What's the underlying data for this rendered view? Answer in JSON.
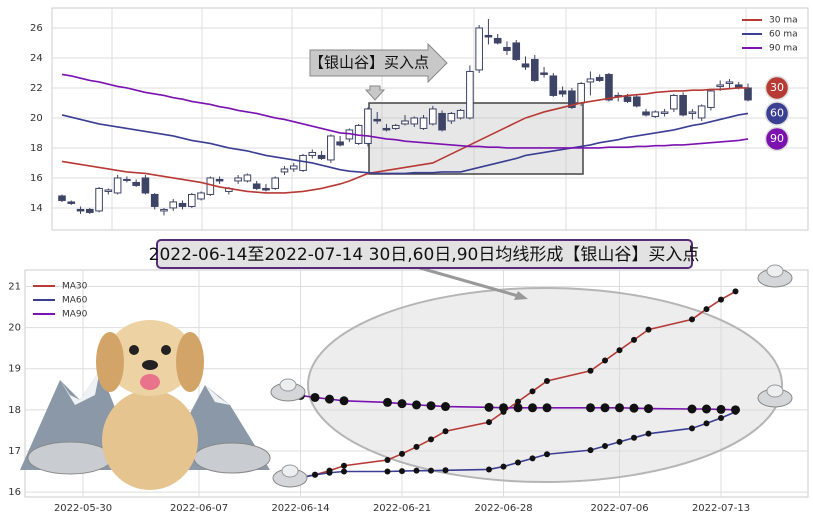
{
  "top_chart": {
    "type": "candlestick",
    "open": [
      14.8,
      14.4,
      13.9,
      13.9,
      13.8,
      15.1,
      15.0,
      15.9,
      15.7,
      16.0,
      14.9,
      13.8,
      14.0,
      14.3,
      14.1,
      14.6,
      14.9,
      15.9,
      15.1,
      15.8,
      15.8,
      15.6,
      15.3,
      15.3,
      16.4,
      16.6,
      16.5,
      17.5,
      17.5,
      17.2,
      18.4,
      18.6,
      18.3,
      18.3,
      19.9,
      19.3,
      19.3,
      19.6,
      19.6,
      19.3,
      19.6,
      20.3,
      19.8,
      20.0,
      20.0,
      23.2,
      25.5,
      25.3,
      24.7,
      25.0,
      23.6,
      23.9,
      23.0,
      22.8,
      21.8,
      21.8,
      21.0,
      22.4,
      22.7,
      22.9,
      21.5,
      21.4,
      21.4,
      20.4,
      20.1,
      20.3,
      20.6,
      21.5,
      20.3,
      20.0,
      20.7,
      22.1,
      22.3,
      22.2,
      22.0
    ],
    "high": [
      14.9,
      14.5,
      14.1,
      14.0,
      15.4,
      15.3,
      16.2,
      16.1,
      15.9,
      16.2,
      15.0,
      14.0,
      14.6,
      14.5,
      15.0,
      15.1,
      16.1,
      16.1,
      15.4,
      16.2,
      16.3,
      15.8,
      15.6,
      16.1,
      16.8,
      17.0,
      17.6,
      17.9,
      17.8,
      18.9,
      18.8,
      19.3,
      19.6,
      20.7,
      20.4,
      19.6,
      19.6,
      20.2,
      20.1,
      20.2,
      20.8,
      20.5,
      20.4,
      20.6,
      23.5,
      26.2,
      26.6,
      25.6,
      25.1,
      25.2,
      24.1,
      24.2,
      23.4,
      23.0,
      22.1,
      22.0,
      22.4,
      23.1,
      22.9,
      23.0,
      21.7,
      21.6,
      21.5,
      20.6,
      20.5,
      20.6,
      21.6,
      21.7,
      20.6,
      20.9,
      21.9,
      22.5,
      22.6,
      22.4,
      22.3
    ],
    "low": [
      14.4,
      14.2,
      13.6,
      13.6,
      13.7,
      14.9,
      14.9,
      15.7,
      15.4,
      14.9,
      13.9,
      13.5,
      13.8,
      13.9,
      14.0,
      14.5,
      14.8,
      15.6,
      14.9,
      15.6,
      15.7,
      15.2,
      15.1,
      15.2,
      16.2,
      16.4,
      16.4,
      17.3,
      17.2,
      17.0,
      18.1,
      18.4,
      18.2,
      18.1,
      19.6,
      19.1,
      19.2,
      19.5,
      19.4,
      19.2,
      19.5,
      19.1,
      19.6,
      19.9,
      19.9,
      23.0,
      24.9,
      24.9,
      24.2,
      23.8,
      23.2,
      22.4,
      22.7,
      21.4,
      21.4,
      20.6,
      20.8,
      21.5,
      22.4,
      21.1,
      21.1,
      21.0,
      20.7,
      20.1,
      20.0,
      20.1,
      20.4,
      20.1,
      19.9,
      19.8,
      20.5,
      21.8,
      22.0,
      21.9,
      21.1
    ],
    "close": [
      14.5,
      14.3,
      13.8,
      13.7,
      15.3,
      15.2,
      16.0,
      15.9,
      15.5,
      15.0,
      14.1,
      13.9,
      14.4,
      14.1,
      14.9,
      15.0,
      16.0,
      15.8,
      15.3,
      16.0,
      16.2,
      15.3,
      15.2,
      16.0,
      16.6,
      16.8,
      17.5,
      17.7,
      17.3,
      18.8,
      18.2,
      19.2,
      19.5,
      20.6,
      19.8,
      19.2,
      19.5,
      19.8,
      20.0,
      20.0,
      20.6,
      19.2,
      20.3,
      20.5,
      23.1,
      26.0,
      25.4,
      25.0,
      24.5,
      23.9,
      23.4,
      22.5,
      22.9,
      21.5,
      21.6,
      20.7,
      22.3,
      22.6,
      22.5,
      21.2,
      21.4,
      21.1,
      20.8,
      20.2,
      20.4,
      20.4,
      21.5,
      20.2,
      20.4,
      20.8,
      21.8,
      22.2,
      22.4,
      22.0,
      21.2
    ],
    "series": [
      {
        "name": "30 ma",
        "badge": "30",
        "color": "#b73a35",
        "values": [
          17.1,
          17.0,
          16.9,
          16.8,
          16.7,
          16.6,
          16.5,
          16.4,
          16.35,
          16.3,
          16.2,
          16.1,
          16.0,
          15.9,
          15.8,
          15.7,
          15.55,
          15.4,
          15.3,
          15.2,
          15.1,
          15.05,
          15.0,
          15.0,
          15.0,
          15.05,
          15.1,
          15.2,
          15.3,
          15.45,
          15.6,
          15.8,
          16.05,
          16.3,
          16.4,
          16.5,
          16.6,
          16.7,
          16.8,
          16.9,
          17.0,
          17.3,
          17.6,
          17.9,
          18.2,
          18.5,
          18.8,
          19.1,
          19.4,
          19.7,
          20.0,
          20.2,
          20.4,
          20.55,
          20.7,
          20.85,
          21.0,
          21.1,
          21.2,
          21.3,
          21.4,
          21.5,
          21.55,
          21.6,
          21.7,
          21.75,
          21.8,
          21.8,
          21.85,
          21.85,
          21.9,
          21.9,
          21.95,
          22.0,
          22.0
        ]
      },
      {
        "name": "60 ma",
        "badge": "60",
        "color": "#3b3f93",
        "values": [
          20.2,
          20.05,
          19.9,
          19.75,
          19.6,
          19.5,
          19.4,
          19.3,
          19.2,
          19.1,
          19.0,
          18.9,
          18.8,
          18.65,
          18.5,
          18.4,
          18.3,
          18.15,
          18.0,
          17.9,
          17.8,
          17.65,
          17.5,
          17.4,
          17.3,
          17.2,
          17.1,
          17.0,
          16.85,
          16.7,
          16.55,
          16.45,
          16.4,
          16.35,
          16.3,
          16.3,
          16.3,
          16.3,
          16.35,
          16.35,
          16.35,
          16.4,
          16.4,
          16.4,
          16.55,
          16.7,
          16.85,
          17.0,
          17.15,
          17.3,
          17.5,
          17.6,
          17.7,
          17.8,
          17.9,
          18.0,
          18.1,
          18.2,
          18.35,
          18.45,
          18.55,
          18.7,
          18.8,
          18.9,
          19.0,
          19.1,
          19.2,
          19.35,
          19.5,
          19.6,
          19.75,
          19.9,
          20.05,
          20.2,
          20.3
        ]
      },
      {
        "name": "90 ma",
        "badge": "90",
        "color": "#7b12b0",
        "values": [
          22.9,
          22.8,
          22.65,
          22.5,
          22.4,
          22.25,
          22.1,
          22.0,
          21.85,
          21.7,
          21.6,
          21.5,
          21.35,
          21.25,
          21.1,
          21.0,
          20.9,
          20.75,
          20.65,
          20.5,
          20.4,
          20.3,
          20.15,
          20.0,
          19.9,
          19.75,
          19.6,
          19.45,
          19.3,
          19.15,
          19.0,
          18.95,
          18.85,
          18.8,
          18.7,
          18.6,
          18.55,
          18.45,
          18.4,
          18.35,
          18.3,
          18.25,
          18.2,
          18.15,
          18.1,
          18.1,
          18.05,
          18.05,
          18.0,
          18.0,
          18.0,
          18.0,
          18.0,
          18.0,
          18.0,
          18.0,
          18.0,
          18.0,
          18.0,
          18.05,
          18.05,
          18.05,
          18.1,
          18.1,
          18.15,
          18.15,
          18.2,
          18.2,
          18.25,
          18.3,
          18.35,
          18.4,
          18.45,
          18.5,
          18.6
        ]
      }
    ],
    "annotation": "【银山谷】买入点",
    "ylim": [
      12.53,
      27.33
    ],
    "yticks": [
      14,
      16,
      18,
      20,
      22,
      24,
      26
    ],
    "grid": true,
    "legend": "upper right"
  },
  "banner": "2022-06-14至2022-07-14 30日,60日,90日均线形成【银山谷】买入点",
  "bottom_chart": {
    "type": "line",
    "x": [
      "2022-06-14",
      "2022-06-15",
      "2022-06-16",
      "2022-06-17",
      "2022-06-20",
      "2022-06-21",
      "2022-06-22",
      "2022-06-23",
      "2022-06-24",
      "2022-06-27",
      "2022-06-28",
      "2022-06-29",
      "2022-06-30",
      "2022-07-01",
      "2022-07-04",
      "2022-07-05",
      "2022-07-06",
      "2022-07-07",
      "2022-07-08",
      "2022-07-11",
      "2022-07-12",
      "2022-07-13",
      "2022-07-14"
    ],
    "series": [
      {
        "name": "MA30",
        "color": "#b73a35",
        "values": [
          16.35,
          16.42,
          16.52,
          16.64,
          16.78,
          16.93,
          17.1,
          17.28,
          17.48,
          17.7,
          17.95,
          18.2,
          18.45,
          18.7,
          18.95,
          19.2,
          19.45,
          19.7,
          19.95,
          20.2,
          20.45,
          20.68,
          20.88
        ]
      },
      {
        "name": "MA60",
        "color": "#3b3f93",
        "values": [
          16.35,
          16.42,
          16.47,
          16.5,
          16.5,
          16.51,
          16.52,
          16.52,
          16.53,
          16.55,
          16.62,
          16.72,
          16.82,
          16.92,
          17.02,
          17.12,
          17.22,
          17.32,
          17.42,
          17.55,
          17.67,
          17.8,
          17.95
        ]
      },
      {
        "name": "MA90",
        "color": "#7b12b0",
        "values": [
          18.35,
          18.3,
          18.26,
          18.22,
          18.18,
          18.15,
          18.12,
          18.1,
          18.08,
          18.06,
          18.05,
          18.05,
          18.05,
          18.05,
          18.05,
          18.05,
          18.05,
          18.04,
          18.03,
          18.02,
          18.02,
          18.01,
          18.0
        ]
      }
    ],
    "xlim": [
      "2022-05-26",
      "2022-07-19"
    ],
    "xticks": [
      "2022-05-30",
      "2022-06-07",
      "2022-06-14",
      "2022-06-21",
      "2022-06-28",
      "2022-07-06",
      "2022-07-13"
    ],
    "ylim": [
      15.88,
      21.4
    ],
    "yticks": [
      16,
      17,
      18,
      19,
      20,
      21
    ],
    "grid": true,
    "legend": "upper left"
  }
}
